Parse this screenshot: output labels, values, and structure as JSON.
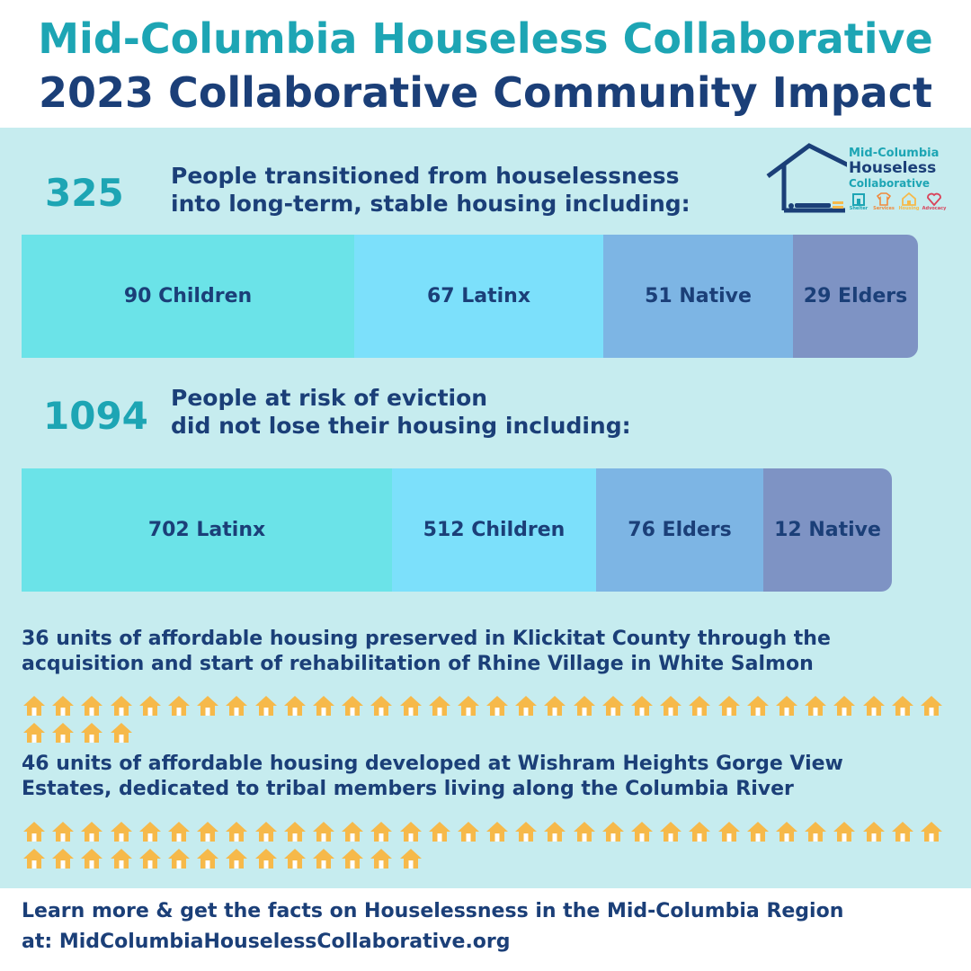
{
  "header": {
    "title_line1": "Mid-Columbia Houseless Collaborative",
    "title_line2": "2023 Collaborative Community Impact"
  },
  "logo": {
    "line1": "Mid-Columbia",
    "line2": "Houseless",
    "line3": "Collaborative",
    "icons": [
      {
        "name": "shelter-icon",
        "label": "Shelter",
        "color": "#1da5b4"
      },
      {
        "name": "services-icon",
        "label": "Services",
        "color": "#f08a3c"
      },
      {
        "name": "housing-icon",
        "label": "Housing",
        "color": "#f6b94a"
      },
      {
        "name": "advocacy-icon",
        "label": "Advocacy",
        "color": "#d9435a"
      }
    ]
  },
  "stat1": {
    "number": "325",
    "description_line1": "People transitioned from houselessness",
    "description_line2": "into long-term, stable housing including:",
    "segments": [
      {
        "label": "90 Children",
        "value": 90,
        "color": "#6be3e8"
      },
      {
        "label": "67 Latinx",
        "value": 67,
        "color": "#7ce0fb"
      },
      {
        "label": "51 Native",
        "value": 51,
        "color": "#7db5e4"
      },
      {
        "label": "29 Elders",
        "value": 29,
        "color": "#7e93c4"
      }
    ]
  },
  "stat2": {
    "number": "1094",
    "description_line1": "People at risk of eviction",
    "description_line2": "did not lose their housing including:",
    "segments": [
      {
        "label": "702 Latinx",
        "value": 702,
        "color": "#6be3e8"
      },
      {
        "label": "512 Children",
        "value": 512,
        "color": "#7ce0fb"
      },
      {
        "label": "76 Elders",
        "value": 76,
        "color": "#7db5e4"
      },
      {
        "label": "12 Native",
        "value": 12,
        "color": "#7e93c4"
      }
    ]
  },
  "units1": {
    "line1": "36 units of affordable housing preserved in Klickitat County through the",
    "line2": "acquisition and start of rehabilitation of Rhine Village in White Salmon",
    "count": 36
  },
  "units2": {
    "line1": "46 units of affordable housing developed at Wishram Heights Gorge View",
    "line2": "Estates, dedicated to tribal members living along the Columbia River",
    "count": 46
  },
  "footer": {
    "line1": "Learn more & get the facts on Houselessness in the Mid-Columbia Region",
    "line2": "at: MidColumbiaHouselessCollaborative.org"
  },
  "colors": {
    "teal": "#1da5b4",
    "navy": "#1b3f78",
    "panel": "#c6ecef",
    "house": "#f6b94a"
  }
}
